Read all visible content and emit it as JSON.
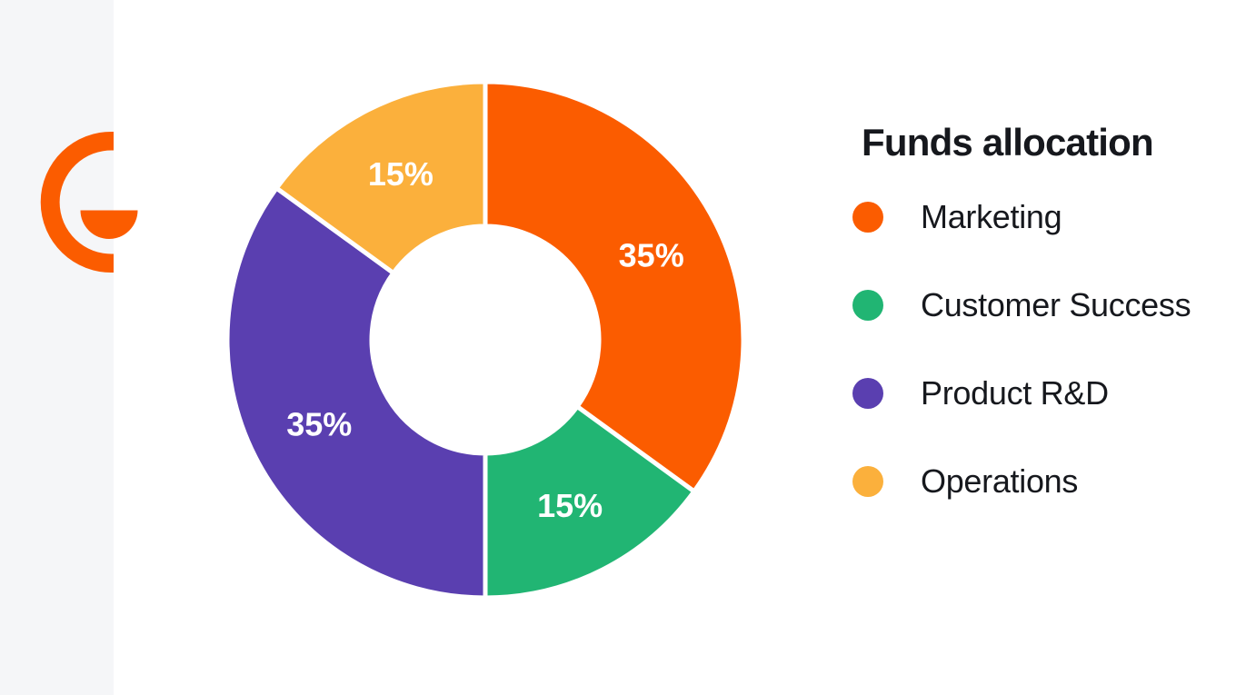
{
  "window": {
    "background": "#FFFFFF",
    "sidebar_background": "#F5F6F8"
  },
  "logo": {
    "name": "brand-logo-g-mark",
    "color": "#FB5C00"
  },
  "panel": {
    "title": "Funds allocation"
  },
  "chart_data": {
    "type": "pie",
    "subtype": "donut",
    "title": "Funds allocation",
    "categories": [
      "Marketing",
      "Customer Success",
      "Product R&D",
      "Operations"
    ],
    "values": [
      35,
      15,
      35,
      15
    ],
    "data_labels": [
      "35%",
      "15%",
      "35%",
      "15%"
    ],
    "colors": [
      "#FB5C00",
      "#21B573",
      "#5A3FB0",
      "#FBB03C"
    ],
    "start_angle_deg": 0,
    "direction": "clockwise",
    "inner_radius_ratio": 0.44,
    "gap_color": "#FFFFFF",
    "data_label_color": "#FFFFFF",
    "legend_position": "right",
    "text_color": "#16181D"
  },
  "legend": {
    "items": [
      {
        "label": "Marketing",
        "color": "#FB5C00"
      },
      {
        "label": "Customer Success",
        "color": "#21B573"
      },
      {
        "label": "Product R&D",
        "color": "#5A3FB0"
      },
      {
        "label": "Operations",
        "color": "#FBB03C"
      }
    ]
  }
}
